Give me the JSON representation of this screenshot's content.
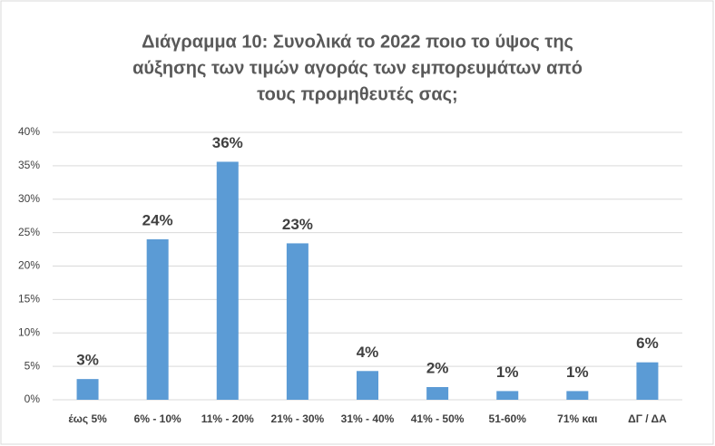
{
  "chart_data": {
    "type": "bar",
    "title": [
      "Διάγραμμα 10: Συνολικά το 2022 ποιο το ύψος της",
      "αύξησης των τιμών αγοράς των εμπορευμάτων από",
      "τους προμηθευτές σας;"
    ],
    "categories": [
      "έως  5%",
      "6% - 10%",
      "11% - 20%",
      "21% - 30%",
      "31% - 40%",
      "41% - 50%",
      "51-60%",
      "71% και",
      "ΔΓ / ΔΑ"
    ],
    "values": [
      3.1,
      24,
      35.6,
      23.4,
      4.3,
      1.9,
      1.3,
      1.3,
      5.6
    ],
    "value_labels": [
      "3%",
      "24%",
      "36%",
      "23%",
      "4%",
      "2%",
      "1%",
      "1%",
      "6%"
    ],
    "color": "#5b9bd5",
    "ylim": [
      0,
      40
    ],
    "yticks": [
      {
        "value": 0,
        "label": "0%"
      },
      {
        "value": 5,
        "label": "5%"
      },
      {
        "value": 10,
        "label": "10%"
      },
      {
        "value": 15,
        "label": "15%"
      },
      {
        "value": 20,
        "label": "20%"
      },
      {
        "value": 25,
        "label": "25%"
      },
      {
        "value": 30,
        "label": "30%"
      },
      {
        "value": 35,
        "label": "35%"
      },
      {
        "value": 40,
        "label": "40%"
      }
    ],
    "grid": true
  }
}
